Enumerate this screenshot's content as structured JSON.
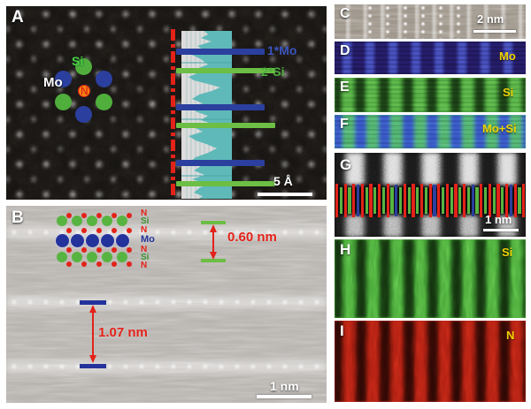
{
  "figure": {
    "panels": {
      "A": {
        "letter": "A",
        "atom_si": "Si",
        "atom_mo": "Mo",
        "atom_n": "N",
        "profile_mo_label": "1*Mo",
        "profile_si_label": "2*Si",
        "scale_label": "5 Å"
      },
      "B": {
        "letter": "B",
        "layer_labels": [
          "N",
          "Si",
          "N",
          "Mo",
          "N",
          "Si",
          "N"
        ],
        "spacing_intra": "0.60 nm",
        "spacing_inter": "1.07 nm",
        "scale_label": "1 nm"
      },
      "C": {
        "letter": "C",
        "scale_label": "2 nm"
      },
      "D": {
        "letter": "D",
        "element": "Mo"
      },
      "E": {
        "letter": "E",
        "element": "Si"
      },
      "F": {
        "letter": "F",
        "element": "Mo+Si"
      },
      "G": {
        "letter": "G",
        "scale_label": "1 nm"
      },
      "H": {
        "letter": "H",
        "element": "Si"
      },
      "I": {
        "letter": "I",
        "element": "N"
      }
    },
    "colors": {
      "mo_blue": "#2b3f9e",
      "si_green": "#58b441",
      "n_red": "#e32219",
      "annotation_red": "#e32219",
      "profile_teal": "#5fb9b9",
      "element_label_yellow": "#f0d400",
      "n_center_orange": "#f08010"
    }
  }
}
